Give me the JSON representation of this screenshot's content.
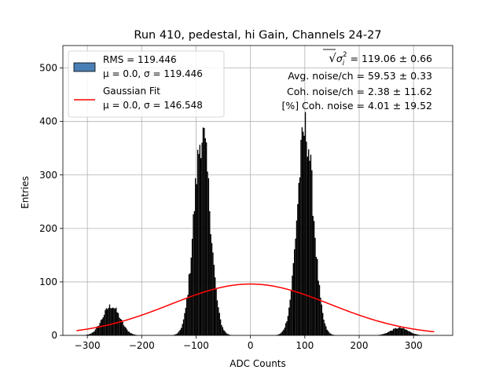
{
  "chart_data": {
    "type": "bar",
    "title": "Run 410, pedestal, hi Gain, Channels 24-27",
    "xlabel": "ADC Counts",
    "ylabel": "Entries",
    "xlim": [
      -345,
      372
    ],
    "ylim": [
      0,
      542
    ],
    "xticks": [
      -300,
      -200,
      -100,
      0,
      100,
      200,
      300
    ],
    "yticks": [
      0,
      100,
      200,
      300,
      400,
      500
    ],
    "xtick_labels": [
      "−300",
      "−200",
      "−100",
      "0",
      "100",
      "200",
      "300"
    ],
    "ytick_labels": [
      "0",
      "100",
      "200",
      "300",
      "400",
      "500"
    ],
    "grid": true,
    "legend_placement": "top-left",
    "histogram": {
      "name": "RMS = 119.446",
      "stats": "μ = 0.0, σ = 119.446",
      "fill_color": "#000000",
      "legend_color": "#4a7fb5",
      "bin_width": 2,
      "peaks": [
        {
          "center": -256,
          "sigma": 16,
          "height": 55
        },
        {
          "center": -89,
          "sigma": 15,
          "height": 375
        },
        {
          "center": 101,
          "sigma": 15,
          "height": 385
        },
        {
          "center": 274,
          "sigma": 16,
          "height": 14
        }
      ],
      "range": [
        -320,
        336
      ]
    },
    "fit": {
      "name": "Gaussian Fit",
      "stats": "μ = 0.0, σ = 146.548",
      "color": "#ff0000",
      "mu": 0.0,
      "sigma": 146.548,
      "amplitude": 96,
      "range": [
        -320,
        338
      ]
    },
    "annotations": [
      {
        "prefix": "√",
        "symbol": "σ",
        "sub": "i",
        "sup": "2",
        "text": " = 119.06 ± 0.66"
      },
      {
        "text": "Avg. noise/ch = 59.53 ± 0.33"
      },
      {
        "text": "Coh. noise/ch = 2.38 ± 11.62"
      },
      {
        "text": "[%] Coh. noise = 4.01 ± 19.52"
      }
    ]
  }
}
